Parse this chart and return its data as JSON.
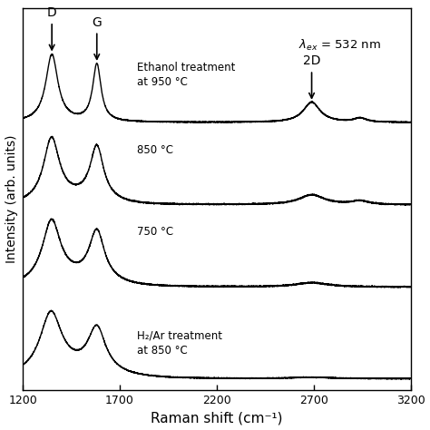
{
  "x_min": 1200,
  "x_max": 3200,
  "xlabel": "Raman shift (cm⁻¹)",
  "ylabel": "Intensity (arb. units)",
  "xticks": [
    1200,
    1700,
    2200,
    2700,
    3200
  ],
  "xtick_labels": [
    "1200",
    "1700",
    "2200",
    "2700",
    "3200"
  ],
  "D_peak": 1350,
  "G_peak": 1582,
  "twoD_peak": 2690,
  "offsets": [
    2.8,
    1.9,
    1.0,
    0.0
  ],
  "line_color": "#000000",
  "background_color": "#ffffff",
  "figsize": [
    4.74,
    4.74
  ],
  "dpi": 100
}
